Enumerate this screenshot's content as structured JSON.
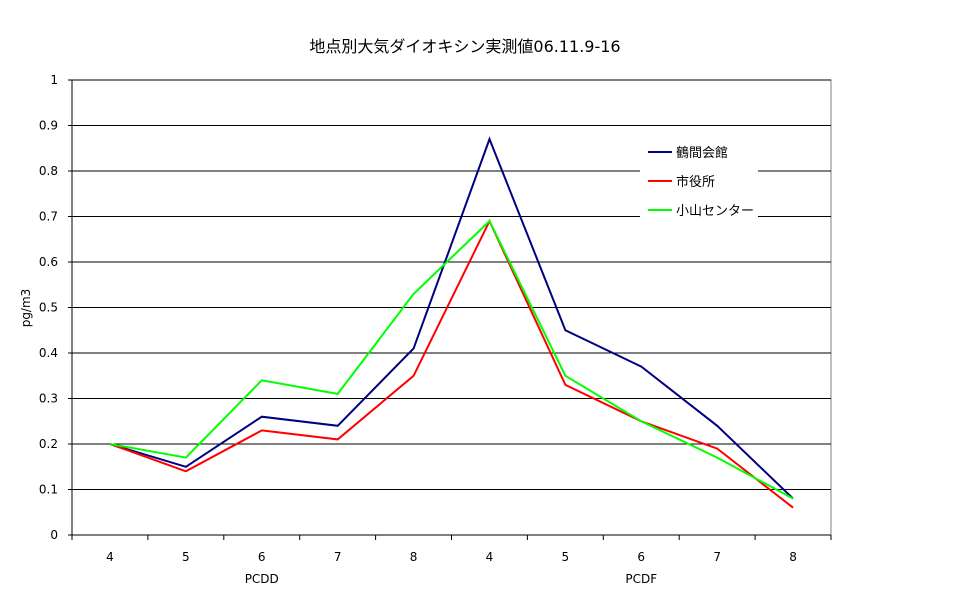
{
  "chart_data": {
    "type": "line",
    "title": "地点別大気ダイオキシン実測値06.11.9-16",
    "ylabel": "pg/m3",
    "xlabel": "",
    "categories": [
      "4",
      "5",
      "6",
      "7",
      "8",
      "4",
      "5",
      "6",
      "7",
      "8"
    ],
    "category_groups": [
      {
        "label": "PCDD",
        "count": 5
      },
      {
        "label": "PCDF",
        "count": 5
      }
    ],
    "ylim": [
      0,
      1
    ],
    "yticks": [
      0,
      0.1,
      0.2,
      0.3,
      0.4,
      0.5,
      0.6,
      0.7,
      0.8,
      0.9,
      1
    ],
    "ytick_labels": [
      "0",
      "0.1",
      "0.2",
      "0.3",
      "0.4",
      "0.5",
      "0.6",
      "0.7",
      "0.8",
      "0.9",
      "1"
    ],
    "grid": "horizontal",
    "legend_position": "top-right",
    "series": [
      {
        "name": "鶴間会館",
        "color": "#000080",
        "values": [
          0.2,
          0.15,
          0.26,
          0.24,
          0.41,
          0.87,
          0.45,
          0.37,
          0.24,
          0.08
        ]
      },
      {
        "name": "市役所",
        "color": "#ff0000",
        "values": [
          0.2,
          0.14,
          0.23,
          0.21,
          0.35,
          0.69,
          0.33,
          0.25,
          0.19,
          0.06
        ]
      },
      {
        "name": "小山センター",
        "color": "#00ff00",
        "values": [
          0.2,
          0.17,
          0.34,
          0.31,
          0.53,
          0.69,
          0.35,
          0.25,
          0.17,
          0.08
        ]
      }
    ]
  }
}
